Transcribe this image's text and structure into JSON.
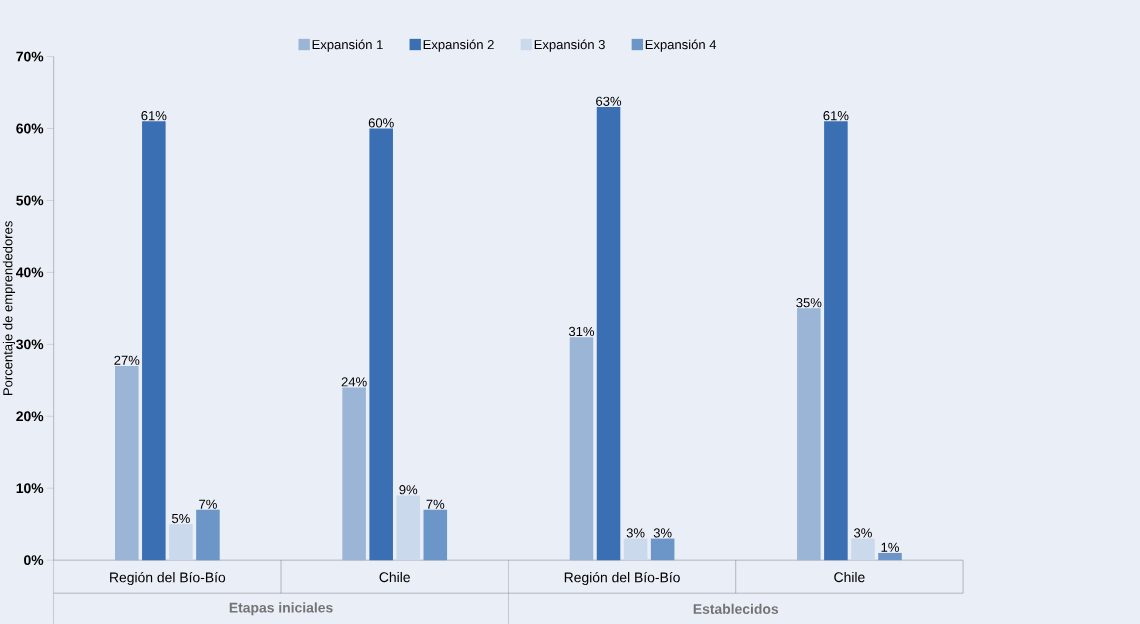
{
  "chart_data": {
    "type": "bar",
    "ylabel": "Porcentaje de emprendedores",
    "categories": [
      "Región del Bío-Bío",
      "Chile",
      "Región del Bío-Bío",
      "Chile"
    ],
    "annotations": [
      "Etapas iniciales",
      "Establecidos"
    ],
    "series": [
      {
        "name": "Expansión 1",
        "color": "#9bb5d6",
        "values": [
          27,
          24,
          31,
          35
        ],
        "value_labels": [
          "27%",
          "24%",
          "31%",
          "35%"
        ]
      },
      {
        "name": "Expansión 2",
        "color": "#3a70b3",
        "values": [
          61,
          60,
          63,
          61
        ],
        "value_labels": [
          "61%",
          "60%",
          "63%",
          "61%"
        ]
      },
      {
        "name": "Expansión 3",
        "color": "#cad9ec",
        "values": [
          5,
          9,
          3,
          3
        ],
        "value_labels": [
          "5%",
          "9%",
          "3%",
          "3%"
        ]
      },
      {
        "name": "Expansión 4",
        "color": "#6b96c7",
        "values": [
          7,
          7,
          3,
          1
        ],
        "value_labels": [
          "7%",
          "7%",
          "3%",
          "1%"
        ]
      }
    ],
    "ylim": [
      0,
      70
    ],
    "yticks": [
      {
        "value": 0,
        "label": "0%"
      },
      {
        "value": 10,
        "label": "10%"
      },
      {
        "value": 20,
        "label": "20%"
      },
      {
        "value": 30,
        "label": "30%"
      },
      {
        "value": 40,
        "label": "40%"
      },
      {
        "value": 50,
        "label": "50%"
      },
      {
        "value": 60,
        "label": "60%"
      },
      {
        "value": 70,
        "label": "70%"
      }
    ],
    "grid": false,
    "legend": "top"
  }
}
